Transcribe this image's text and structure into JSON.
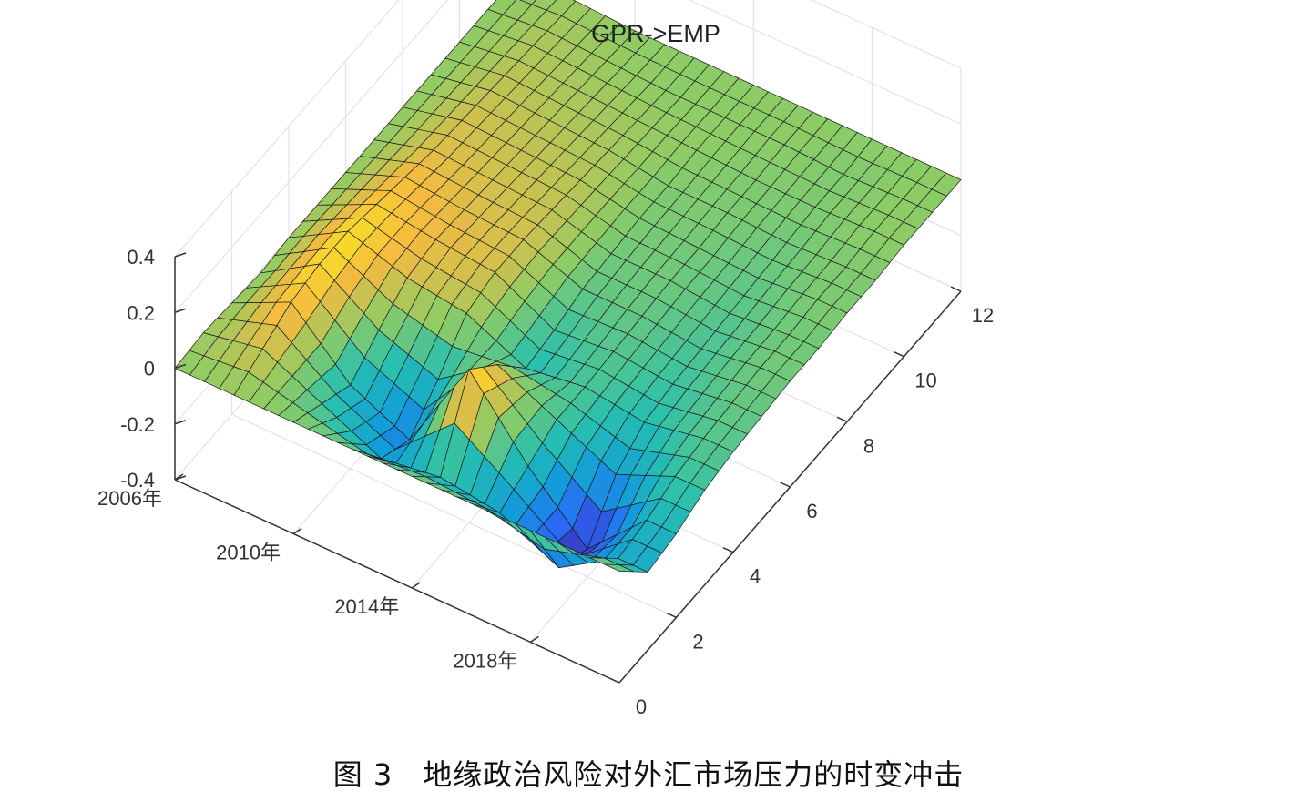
{
  "chart_data": {
    "type": "surface",
    "title": "GPR->EMP",
    "xlabel": "",
    "ylabel": "",
    "zlabel": "",
    "time_axis": {
      "ticks": [
        "2006年",
        "2010年",
        "2014年",
        "2018年"
      ],
      "range_years": [
        2006,
        2021
      ]
    },
    "horizon_axis": {
      "ticks": [
        0,
        2,
        4,
        6,
        8,
        10,
        12
      ],
      "range": [
        0,
        12
      ]
    },
    "z_axis": {
      "ticks": [
        -0.4,
        -0.2,
        0,
        0.2,
        0.4
      ],
      "range": [
        -0.4,
        0.4
      ]
    },
    "grid": true,
    "colormap": "parula",
    "approximate_response": [
      {
        "year": 2006,
        "horizon_values": [
          0,
          0.01,
          0.0,
          -0.01,
          0,
          0,
          0,
          0,
          0,
          0,
          0,
          0,
          0
        ]
      },
      {
        "year": 2008,
        "horizon_values": [
          0,
          0.05,
          0.1,
          0.12,
          0.12,
          0.1,
          0.08,
          0.06,
          0.05,
          0.04,
          0.03,
          0.02,
          0.01
        ]
      },
      {
        "year": 2010,
        "horizon_values": [
          0,
          -0.05,
          -0.1,
          -0.02,
          0.05,
          0.07,
          0.06,
          0.05,
          0.04,
          0.03,
          0.02,
          0.01,
          0.0
        ]
      },
      {
        "year": 2012,
        "horizon_values": [
          0,
          -0.15,
          -0.2,
          -0.1,
          0.02,
          0.05,
          0.05,
          0.04,
          0.03,
          0.02,
          0.01,
          0.0,
          0.0
        ]
      },
      {
        "year": 2014,
        "horizon_values": [
          0,
          -0.12,
          0.15,
          0.05,
          -0.08,
          -0.06,
          -0.03,
          -0.02,
          -0.01,
          -0.01,
          0,
          0,
          0
        ]
      },
      {
        "year": 2016,
        "horizon_values": [
          0,
          -0.15,
          -0.1,
          -0.05,
          -0.05,
          -0.04,
          -0.03,
          -0.02,
          -0.02,
          -0.01,
          -0.01,
          0,
          0
        ]
      },
      {
        "year": 2018,
        "horizon_values": [
          0,
          -0.25,
          -0.3,
          -0.15,
          -0.08,
          -0.06,
          -0.05,
          -0.04,
          -0.03,
          -0.02,
          -0.01,
          -0.01,
          0
        ]
      },
      {
        "year": 2020,
        "horizon_values": [
          0,
          -0.12,
          -0.1,
          -0.06,
          -0.04,
          -0.03,
          -0.02,
          -0.02,
          -0.01,
          -0.01,
          0,
          0,
          0
        ]
      }
    ]
  },
  "caption": "图 3　地缘政治风险对外汇市场压力的时变冲击"
}
